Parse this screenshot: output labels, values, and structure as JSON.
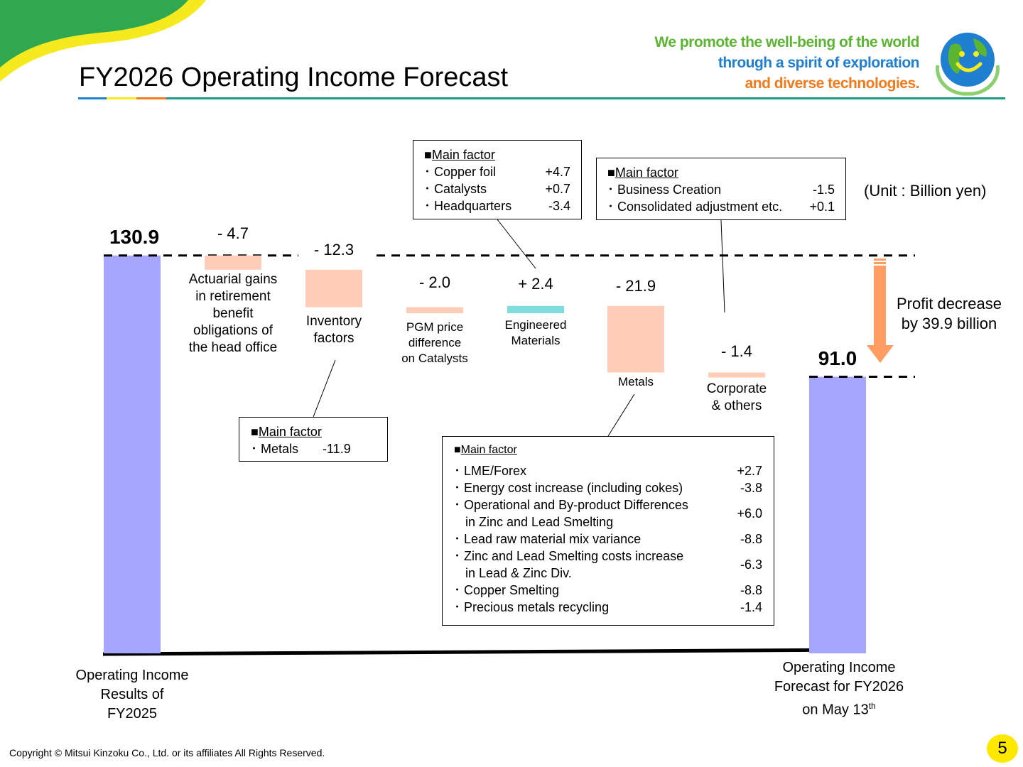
{
  "title": "FY2026 Operating Income Forecast",
  "slogan": {
    "line1": "We promote the well-being of the world",
    "line2": "through a spirit of exploration",
    "line3": "and diverse technologies."
  },
  "unit_note": "(Unit : Billion yen)",
  "profit_note": {
    "line1": "Profit decrease",
    "line2": "by 39.9 billion"
  },
  "copyright": "Copyright © Mitsui Kinzoku Co., Ltd. or its affiliates All Rights Reserved.",
  "page_number": "5",
  "colors": {
    "total_bar": "#a6a6ff",
    "negative_bar": "#ffcdb7",
    "positive_bar": "#7fdcdc",
    "arrow": "#ff9d62",
    "accent": "#1e9a84"
  },
  "chart_data": {
    "type": "bar",
    "subtype": "waterfall",
    "unit": "Billion yen",
    "ylim": [
      0,
      140
    ],
    "start": {
      "value": 130.9,
      "label_display": "130.9",
      "category": "Operating Income Results of FY2025"
    },
    "end": {
      "value": 91.0,
      "label_display": "91.0",
      "category_line1": "Operating Income",
      "category_line2": "Forecast for FY2026",
      "category_line3_base": "on May 13",
      "category_line3_sup": "th"
    },
    "steps": [
      {
        "label_lines": [
          "Actuarial gains",
          "in retirement",
          "benefit",
          "obligations of",
          "the head office"
        ],
        "value": -4.7,
        "display": "- 4.7",
        "small": false
      },
      {
        "label_lines": [
          "Inventory",
          "factors"
        ],
        "value": -12.3,
        "display": "- 12.3",
        "small": false
      },
      {
        "label_lines": [
          "PGM price",
          "difference",
          "on Catalysts"
        ],
        "value": -2.0,
        "display": "- 2.0",
        "small": true
      },
      {
        "label_lines": [
          "Engineered",
          "Materials"
        ],
        "value": 2.4,
        "display": "+ 2.4",
        "small": true
      },
      {
        "label_lines": [
          "Metals"
        ],
        "value": -21.9,
        "display": "- 21.9",
        "small": true
      },
      {
        "label_lines": [
          "Corporate",
          "& others"
        ],
        "value": -1.4,
        "display": "- 1.4",
        "small": false
      }
    ],
    "start_label_lines": [
      "Operating Income",
      "Results of",
      "FY2025"
    ]
  },
  "boxes": {
    "em": {
      "title": "Main factor",
      "items": [
        {
          "label": "Copper foil",
          "value": "+4.7"
        },
        {
          "label": "Catalysts",
          "value": "+0.7"
        },
        {
          "label": "Headquarters",
          "value": "-3.4"
        }
      ]
    },
    "corp": {
      "title": "Main factor",
      "items": [
        {
          "label": "Business Creation",
          "value": "-1.5"
        },
        {
          "label": "Consolidated adjustment etc.",
          "value": "+0.1"
        }
      ]
    },
    "inv": {
      "title": "Main factor",
      "items": [
        {
          "label": "Metals",
          "value": "-11.9"
        }
      ]
    },
    "metals": {
      "title": "Main factor",
      "items": [
        {
          "label": "LME/Forex",
          "value": "+2.7"
        },
        {
          "label": "Energy cost increase (including cokes)",
          "value": "-3.8"
        },
        {
          "label": "Operational and By-product Differences",
          "label2": "in Zinc and Lead Smelting",
          "value": "+6.0"
        },
        {
          "label": "Lead raw material mix variance",
          "value": "-8.8"
        },
        {
          "label": "Zinc and Lead Smelting costs increase",
          "label2": "in Lead & Zinc Div.",
          "value": "-6.3"
        },
        {
          "label": "Copper Smelting",
          "value": "-8.8"
        },
        {
          "label": "Precious metals recycling",
          "value": "-1.4"
        }
      ]
    }
  }
}
